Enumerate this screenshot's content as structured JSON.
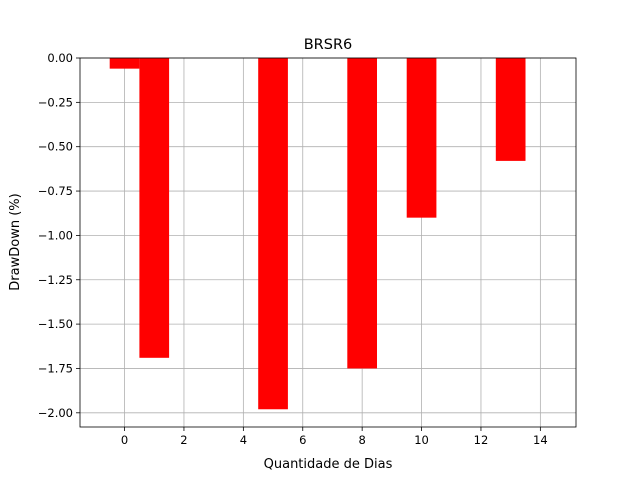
{
  "chart_data": {
    "type": "bar",
    "title": "BRSR6",
    "xlabel": "Quantidade de Dias",
    "ylabel": "DrawDown (%)",
    "xlim": [
      -1.5,
      15.2
    ],
    "ylim": [
      -2.08,
      0.0
    ],
    "xticks": [
      0,
      2,
      4,
      6,
      8,
      10,
      12,
      14
    ],
    "xtick_labels": [
      "0",
      "2",
      "4",
      "6",
      "8",
      "10",
      "12",
      "14"
    ],
    "yticks": [
      0.0,
      -0.25,
      -0.5,
      -0.75,
      -1.0,
      -1.25,
      -1.5,
      -1.75,
      -2.0
    ],
    "ytick_labels": [
      "0.00",
      "−0.25",
      "−0.50",
      "−0.75",
      "−1.00",
      "−1.25",
      "−1.50",
      "−1.75",
      "−2.00"
    ],
    "grid": true,
    "bar_color": "#ff0000",
    "bar_width": 1.0,
    "x": [
      0,
      1,
      5,
      8,
      10,
      13
    ],
    "values": [
      -0.06,
      -1.69,
      -1.98,
      -1.75,
      -0.9,
      -0.58
    ]
  }
}
